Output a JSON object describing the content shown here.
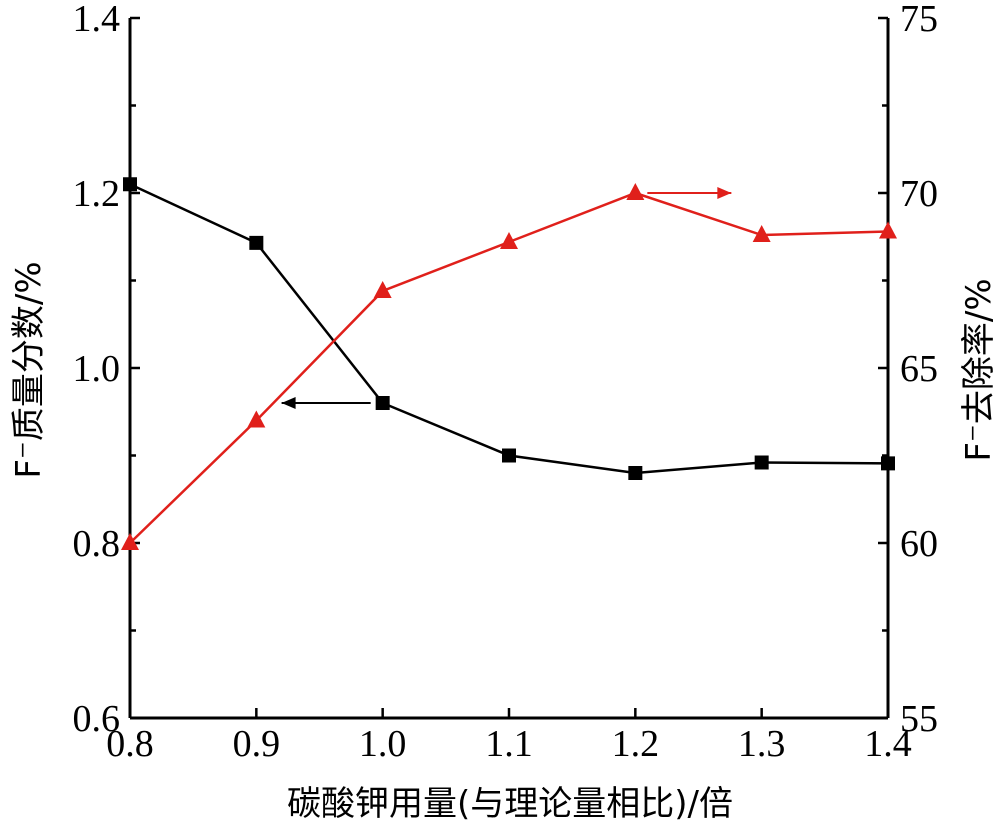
{
  "chart_data": {
    "type": "line",
    "xlabel": "碳酸钾用量(与理论量相比)/倍",
    "ylabel_left": "F⁻质量分数/%",
    "ylabel_right": "F⁻去除率/%",
    "xlim": [
      0.8,
      1.4
    ],
    "ylim_left": [
      0.6,
      1.4
    ],
    "ylim_right": [
      55,
      75
    ],
    "x_ticks": [
      "0.8",
      "0.9",
      "1.0",
      "1.1",
      "1.2",
      "1.3",
      "1.4"
    ],
    "y_left_ticks": [
      "0.6",
      "0.8",
      "1.0",
      "1.2",
      "1.4"
    ],
    "y_right_ticks": [
      "55",
      "60",
      "65",
      "70",
      "75"
    ],
    "grid": false,
    "series": [
      {
        "axis": "left",
        "marker": "square",
        "color": "#000000",
        "x": [
          0.8,
          0.9,
          1.0,
          1.1,
          1.2,
          1.3,
          1.4
        ],
        "values": [
          1.21,
          1.143,
          0.96,
          0.9,
          0.88,
          0.892,
          0.891
        ]
      },
      {
        "axis": "right",
        "marker": "triangle",
        "color": "#e0201b",
        "x": [
          0.8,
          0.9,
          1.0,
          1.1,
          1.2,
          1.3,
          1.4
        ],
        "values": [
          60.0,
          63.5,
          67.2,
          68.6,
          70.0,
          68.8,
          68.9
        ]
      }
    ],
    "annotations": [
      {
        "type": "arrow",
        "direction": "left",
        "color": "#000000",
        "series": 0
      },
      {
        "type": "arrow",
        "direction": "right",
        "color": "#e0201b",
        "series": 1
      }
    ]
  }
}
